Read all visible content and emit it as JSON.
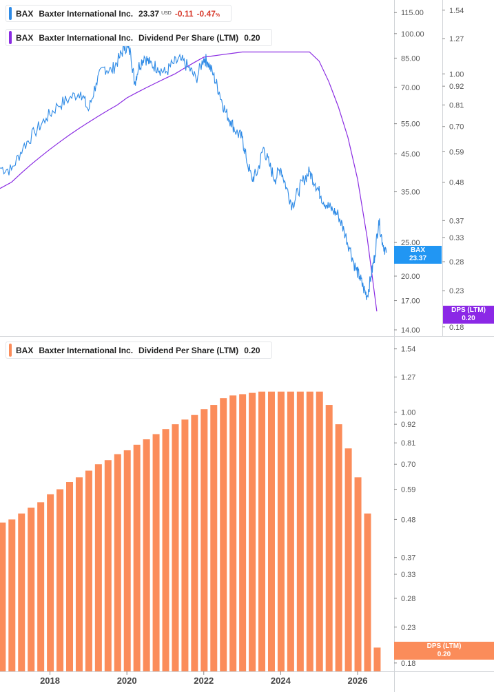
{
  "legend": {
    "price": {
      "ticker": "BAX",
      "name": "Baxter International Inc.",
      "value": "23.37",
      "currency": "USD",
      "change": "-0.11",
      "change_pct": "-0.47",
      "pct_sign": "%"
    },
    "dps_top": {
      "ticker": "BAX",
      "name": "Baxter International Inc.",
      "metric": "Dividend Per Share (LTM)",
      "value": "0.20"
    },
    "dps_bottom": {
      "ticker": "BAX",
      "name": "Baxter International Inc.",
      "metric": "Dividend Per Share (LTM)",
      "value": "0.20"
    }
  },
  "tags": {
    "price": {
      "label": "BAX",
      "value": "23.37"
    },
    "dps_top": {
      "label": "DPS (LTM)",
      "value": "0.20"
    },
    "dps_bottom": {
      "label": "DPS (LTM)",
      "value": "0.20"
    }
  },
  "colors": {
    "price": "#2f8be6",
    "dps_line": "#8a2be2",
    "dps_bar": "#fb8c5a",
    "tag_price": "#2196f3",
    "tag_dps_top": "#8b28e6",
    "tag_dps_bottom": "#fb8c5a"
  },
  "chart_data": [
    {
      "type": "line",
      "name": "BAX price",
      "scale": "log",
      "y_ticks": [
        "115.00",
        "100.00",
        "85.00",
        "70.00",
        "55.00",
        "45.00",
        "35.00",
        "25.00",
        "20.00",
        "17.00",
        "14.00"
      ],
      "x": [
        2016.7,
        2017.0,
        2017.3,
        2017.6,
        2017.9,
        2018.2,
        2018.5,
        2018.8,
        2019.0,
        2019.2,
        2019.4,
        2019.6,
        2019.8,
        2019.95,
        2020.1,
        2020.2,
        2020.3,
        2020.45,
        2020.6,
        2020.8,
        2021.0,
        2021.2,
        2021.4,
        2021.6,
        2021.8,
        2022.0,
        2022.1,
        2022.25,
        2022.4,
        2022.55,
        2022.7,
        2022.85,
        2023.0,
        2023.1,
        2023.25,
        2023.4,
        2023.55,
        2023.7,
        2023.85,
        2024.0,
        2024.15,
        2024.3,
        2024.45,
        2024.6,
        2024.75,
        2024.9,
        2025.05,
        2025.2,
        2025.35,
        2025.5,
        2025.65,
        2025.8,
        2025.95,
        2026.05,
        2026.15,
        2026.25,
        2026.35,
        2026.45,
        2026.55,
        2026.65,
        2026.75
      ],
      "values": [
        41,
        40.5,
        47,
        52,
        57,
        62,
        65,
        68,
        60,
        72,
        80,
        78,
        85,
        92,
        88,
        72,
        80,
        86,
        82,
        80,
        77,
        82,
        84,
        80,
        74,
        85,
        83,
        76,
        68,
        60,
        56,
        52,
        50,
        44,
        38,
        40,
        47,
        42,
        38,
        41,
        36,
        32,
        35,
        38,
        40,
        37,
        34,
        32,
        31,
        30,
        27,
        24,
        21,
        20,
        18.5,
        17.5,
        20,
        23,
        29,
        25,
        23.37
      ],
      "ylim": [
        13.5,
        125
      ]
    },
    {
      "type": "line",
      "name": "Dividend Per Share (LTM)",
      "scale": "log",
      "y_ticks": [
        "1.54",
        "1.27",
        "1.00",
        "0.92",
        "0.81",
        "0.70",
        "0.59",
        "0.48",
        "0.37",
        "0.33",
        "0.28",
        "0.23",
        "0.18"
      ],
      "x": [
        2016.7,
        2017.0,
        2017.25,
        2017.5,
        2017.75,
        2018.0,
        2018.25,
        2018.5,
        2018.75,
        2019.0,
        2019.25,
        2019.5,
        2019.75,
        2020.0,
        2020.25,
        2020.5,
        2020.75,
        2021.0,
        2021.25,
        2021.5,
        2021.75,
        2022.0,
        2022.25,
        2022.5,
        2022.75,
        2023.0,
        2023.25,
        2023.5,
        2023.75,
        2024.0,
        2024.25,
        2024.5,
        2024.75,
        2025.0,
        2025.25,
        2025.5,
        2025.75,
        2026.0,
        2026.25,
        2026.5
      ],
      "values": [
        0.46,
        0.48,
        0.51,
        0.54,
        0.57,
        0.6,
        0.63,
        0.66,
        0.69,
        0.72,
        0.75,
        0.78,
        0.81,
        0.85,
        0.88,
        0.91,
        0.94,
        0.97,
        1.0,
        1.04,
        1.08,
        1.12,
        1.13,
        1.14,
        1.15,
        1.16,
        1.16,
        1.16,
        1.16,
        1.16,
        1.16,
        1.16,
        1.16,
        1.09,
        0.95,
        0.8,
        0.65,
        0.49,
        0.33,
        0.2
      ],
      "ylim": [
        0.17,
        1.65
      ]
    },
    {
      "type": "bar",
      "name": "Dividend Per Share (LTM)",
      "scale": "log",
      "y_ticks": [
        "1.54",
        "1.27",
        "1.00",
        "0.92",
        "0.81",
        "0.70",
        "0.59",
        "0.48",
        "0.37",
        "0.33",
        "0.28",
        "0.23",
        "0.18"
      ],
      "x_ticks": [
        "2018",
        "2020",
        "2022",
        "2024",
        "2026"
      ],
      "x": [
        2016.76,
        2017.01,
        2017.26,
        2017.51,
        2017.76,
        2018.01,
        2018.26,
        2018.51,
        2018.76,
        2019.01,
        2019.26,
        2019.51,
        2019.76,
        2020.01,
        2020.26,
        2020.51,
        2020.76,
        2021.01,
        2021.26,
        2021.51,
        2021.76,
        2022.01,
        2022.26,
        2022.51,
        2022.76,
        2023.01,
        2023.26,
        2023.51,
        2023.76,
        2024.01,
        2024.26,
        2024.51,
        2024.76,
        2025.01,
        2025.26,
        2025.51,
        2025.76,
        2026.01,
        2026.26,
        2026.51
      ],
      "values": [
        0.47,
        0.48,
        0.5,
        0.52,
        0.54,
        0.57,
        0.59,
        0.62,
        0.64,
        0.67,
        0.7,
        0.72,
        0.75,
        0.77,
        0.8,
        0.83,
        0.86,
        0.89,
        0.92,
        0.95,
        0.98,
        1.02,
        1.05,
        1.1,
        1.12,
        1.13,
        1.14,
        1.15,
        1.15,
        1.15,
        1.15,
        1.15,
        1.15,
        1.15,
        1.05,
        0.92,
        0.78,
        0.64,
        0.5,
        0.2
      ],
      "ylim": [
        0.17,
        1.65
      ]
    }
  ]
}
